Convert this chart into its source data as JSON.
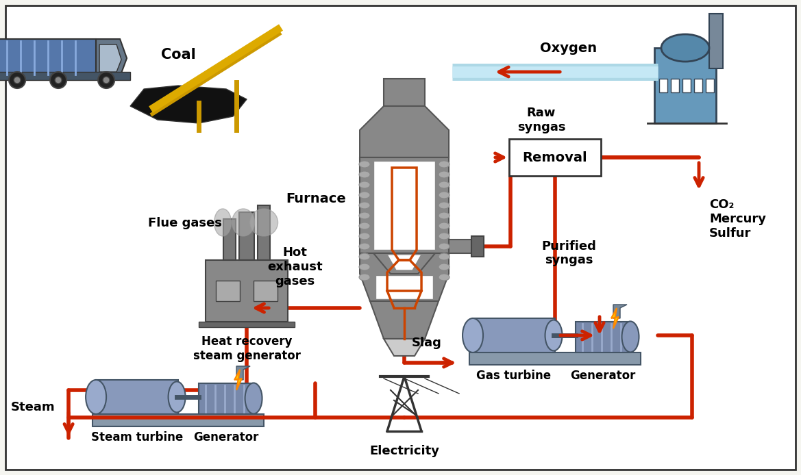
{
  "title": "",
  "bg_color": "#f5f5f0",
  "border_color": "#333333",
  "arrow_color": "#cc2200",
  "oxygen_pipe_color": "#add8e6",
  "labels": {
    "coal": "Coal",
    "oxygen": "Oxygen",
    "furnace": "Furnace",
    "raw_syngas": "Raw\nsyngas",
    "removal": "Removal",
    "co2": "CO₂\nMercury\nSulfur",
    "purified_syngas": "Purified\nsyngas",
    "slag": "Slag",
    "hot_exhaust": "Hot\nexhaust\ngases",
    "flue_gases": "Flue gases",
    "heat_recovery": "Heat recovery\nsteam generator",
    "steam": "Steam",
    "steam_turbine": "Steam turbine",
    "generator_left": "Generator",
    "gas_turbine": "Gas turbine",
    "generator_right": "Generator",
    "electricity": "Electricity"
  },
  "furnace_color": "#888888",
  "furnace_inner_color": "#ffffff",
  "furnace_lines_color": "#aaaaaa",
  "furnace_hot_color": "#cc4400",
  "pipe_color": "#cc2200",
  "removal_box_color": "#ffffff",
  "removal_box_border": "#333333",
  "turbine_color": "#8899bb",
  "turbine_base_color": "#6688aa"
}
